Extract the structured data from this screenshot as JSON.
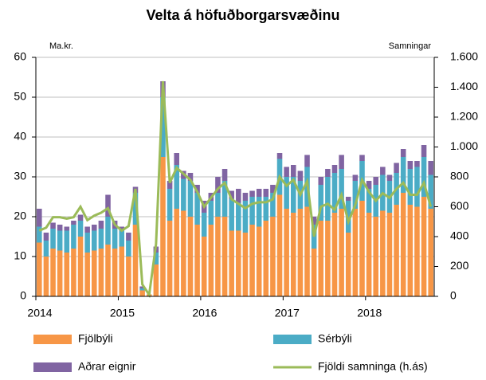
{
  "chart_data": {
    "type": "bar",
    "stacked": true,
    "title": "Velta á höfuðborgarsvæðinu",
    "y_label": "Ma.kr.",
    "y2_label": "Samningar",
    "categories": [
      "2014",
      null,
      null,
      null,
      null,
      null,
      null,
      null,
      null,
      null,
      null,
      null,
      "2015",
      null,
      null,
      null,
      null,
      null,
      null,
      null,
      null,
      null,
      null,
      null,
      "2016",
      null,
      null,
      null,
      null,
      null,
      null,
      null,
      null,
      null,
      null,
      null,
      "2017",
      null,
      null,
      null,
      null,
      null,
      null,
      null,
      null,
      null,
      null,
      null,
      "2018",
      null,
      null,
      null,
      null,
      null,
      null,
      null,
      null,
      null
    ],
    "series": [
      {
        "name": "Fjölbýli",
        "color": "#f79646",
        "values": [
          13.5,
          10,
          12,
          11.5,
          11,
          12,
          15,
          11,
          11.5,
          12,
          13,
          12,
          12.5,
          10,
          18,
          1.5,
          0.5,
          8,
          35,
          19,
          22,
          21.5,
          20,
          18,
          15,
          18,
          20,
          20,
          16.5,
          16.5,
          16,
          18,
          17.5,
          19,
          20,
          25.5,
          22,
          21,
          22,
          22.5,
          12,
          19,
          19,
          21,
          22,
          16,
          22,
          24,
          21,
          20,
          21.5,
          21,
          23,
          26,
          23,
          22.5,
          25,
          22
        ]
      },
      {
        "name": "Sérbýli",
        "color": "#4bacc6",
        "values": [
          4,
          4,
          5,
          5,
          5.5,
          6,
          4,
          5,
          5,
          5,
          7,
          5,
          4,
          4,
          8,
          0.5,
          0,
          3,
          15,
          8,
          11,
          8,
          9,
          8,
          6,
          6,
          6,
          9,
          8,
          7,
          8,
          7,
          7.5,
          6,
          6,
          9,
          8,
          9,
          7,
          10,
          6,
          9,
          11,
          10,
          10,
          8,
          7,
          10,
          6,
          8,
          9,
          8,
          8,
          9,
          9,
          10,
          10,
          8.5
        ]
      },
      {
        "name": "Aðrar eignir",
        "color": "#8064a2",
        "values": [
          4.5,
          2,
          1.5,
          1.5,
          1,
          1,
          1.5,
          1.5,
          1.5,
          2,
          5.5,
          2,
          1,
          2,
          1.5,
          0.5,
          0,
          1.5,
          4,
          2,
          3,
          2,
          2,
          2,
          3,
          2,
          4,
          3,
          2,
          3.5,
          2,
          1.5,
          2,
          2,
          2,
          1.5,
          2.5,
          3,
          2.5,
          3,
          2,
          2,
          2,
          2,
          3.5,
          1,
          1.5,
          1.5,
          2,
          2,
          2,
          1.5,
          2.5,
          2,
          2,
          1.5,
          3,
          3.5
        ]
      },
      {
        "name": "Fjöldi samninga (h.ás)",
        "color": "#9bbb59",
        "type": "line",
        "axis": "y2",
        "values": [
          440,
          460,
          530,
          530,
          520,
          530,
          600,
          510,
          540,
          560,
          590,
          480,
          440,
          470,
          720,
          80,
          10,
          350,
          1440,
          760,
          860,
          820,
          780,
          700,
          600,
          660,
          720,
          760,
          650,
          620,
          590,
          620,
          630,
          630,
          650,
          800,
          740,
          780,
          680,
          770,
          400,
          600,
          620,
          580,
          680,
          500,
          610,
          780,
          700,
          640,
          690,
          660,
          720,
          760,
          680,
          680,
          760,
          600
        ]
      }
    ],
    "ylim": [
      0,
      60
    ],
    "yticks": [
      0,
      10,
      20,
      30,
      40,
      50,
      60
    ],
    "y2lim": [
      0,
      1600
    ],
    "y2ticks": [
      0,
      200,
      400,
      600,
      800,
      {
        "value": 1000,
        "label": "1.000"
      },
      {
        "value": 1200,
        "label": "1.200"
      },
      {
        "value": 1400,
        "label": "1.400"
      },
      {
        "value": 1600,
        "label": "1.600"
      }
    ],
    "grid": true
  }
}
